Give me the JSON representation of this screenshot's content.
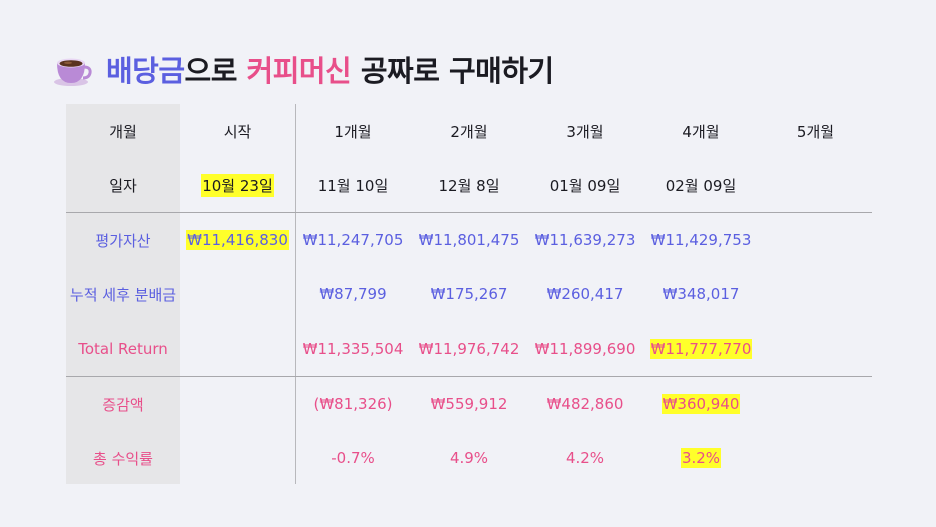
{
  "title": {
    "part1": "배당금",
    "part2": "으로 ",
    "part3": "커피머신",
    "part4": " 공짜로 구매하기",
    "icon": "coffee-cup-icon"
  },
  "header": {
    "months": [
      "개월",
      "시작",
      "1개월",
      "2개월",
      "3개월",
      "4개월",
      "5개월"
    ],
    "dates": [
      "일자",
      "10월 23일",
      "11월 10일",
      "12월 8일",
      "01월 09일",
      "02월 09일",
      ""
    ]
  },
  "rows": {
    "asset": [
      "평가자산",
      "₩11,416,830",
      "₩11,247,705",
      "₩11,801,475",
      "₩11,639,273",
      "₩11,429,753",
      ""
    ],
    "dividends": [
      "누적 세후 분배금",
      "",
      "₩87,799",
      "₩175,267",
      "₩260,417",
      "₩348,017",
      ""
    ],
    "total_return": [
      "Total Return",
      "",
      "₩11,335,504",
      "₩11,976,742",
      "₩11,899,690",
      "₩11,777,770",
      ""
    ],
    "change": [
      "증감액",
      "",
      "(₩81,326)",
      "₩559,912",
      "₩482,860",
      "₩360,940",
      ""
    ],
    "yield": [
      "총 수익률",
      "",
      "-0.7%",
      "4.9%",
      "4.2%",
      "3.2%",
      ""
    ]
  },
  "colors": {
    "blue": "#5b5fe0",
    "pink": "#e84f8a",
    "highlight": "#ffff2a",
    "background": "#f1f2f7"
  }
}
